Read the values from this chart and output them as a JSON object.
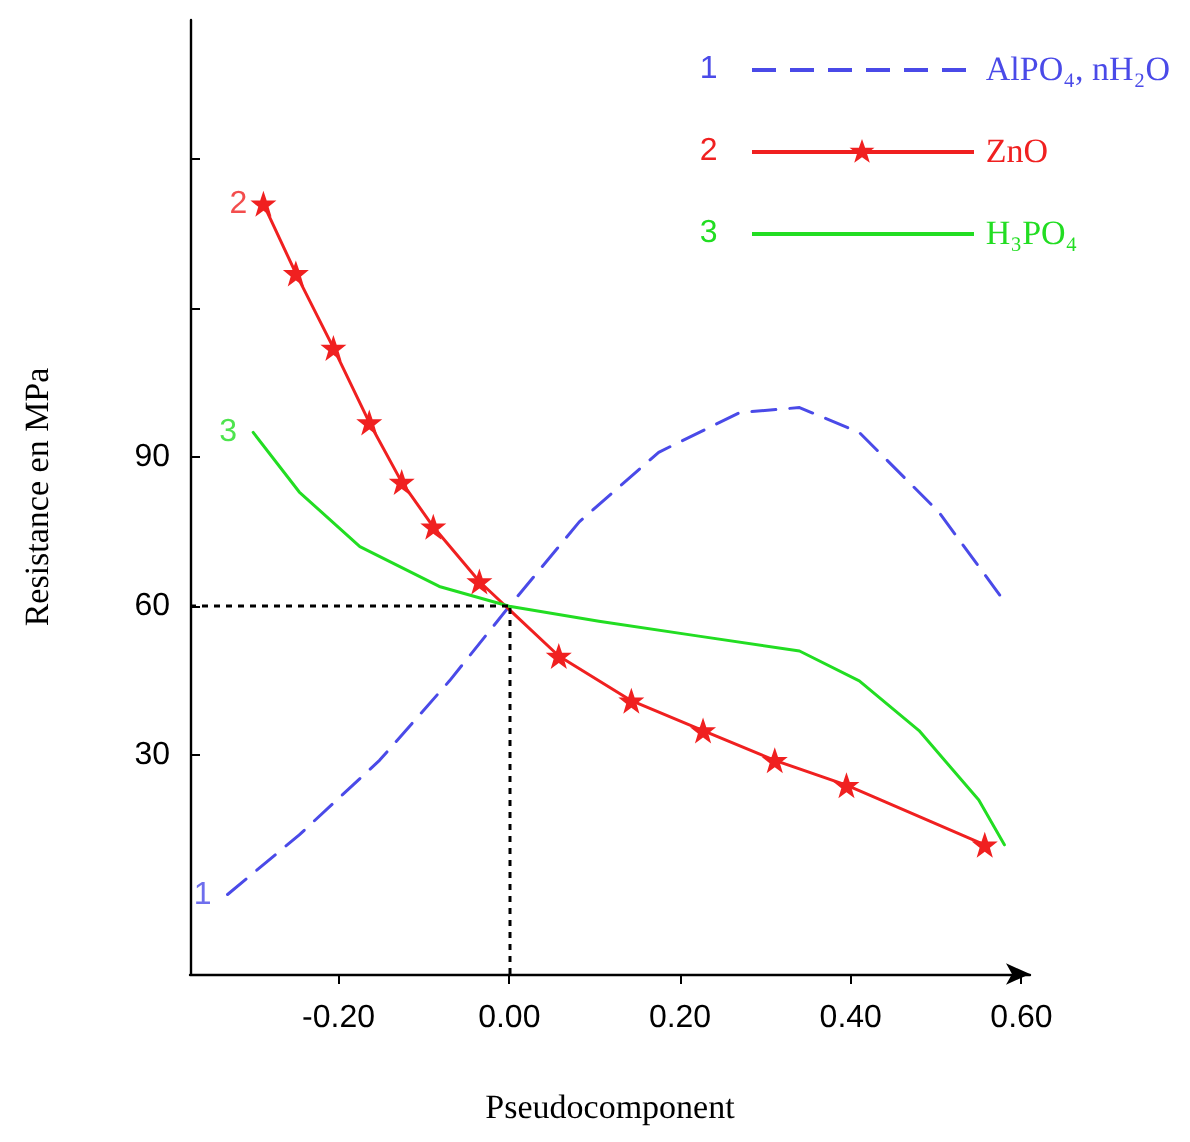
{
  "chart_data": {
    "type": "line",
    "xlabel": "Pseudocomponent",
    "ylabel": "Resistance en MPa",
    "xlim": [
      -0.374,
      0.61
    ],
    "ylim": [
      -14,
      178
    ],
    "xticks": [
      {
        "value": -0.2,
        "label": "-0.20"
      },
      {
        "value": 0,
        "label": "0.00"
      },
      {
        "value": 0.2,
        "label": "0.20"
      },
      {
        "value": 0.4,
        "label": "0.40"
      },
      {
        "value": 0.6,
        "label": "0.60"
      }
    ],
    "yticks": [
      30,
      60,
      90,
      {
        "value": 120,
        "label": null
      },
      {
        "value": 150,
        "label": null
      }
    ],
    "grid": false,
    "legend": "top right",
    "series": [
      {
        "name": "AlPO₄, nH₂O",
        "color": "#4a4ae8",
        "line_style": "dashed",
        "marker": "none",
        "x": [
          -0.33,
          -0.246,
          -0.152,
          -0.07,
          0,
          0.082,
          0.175,
          0.27,
          0.34,
          0.41,
          0.503,
          0.58
        ],
        "values": [
          2,
          14,
          29,
          45,
          60,
          77,
          91,
          99,
          100,
          95,
          79,
          61
        ]
      },
      {
        "name": "ZnO",
        "color": "#f02020",
        "line_style": "solid",
        "marker": "star",
        "x": [
          -0.288,
          -0.25,
          -0.206,
          -0.164,
          -0.126,
          -0.089,
          -0.035,
          0.058,
          0.143,
          0.227,
          0.311,
          0.395,
          0.557
        ],
        "values": [
          141,
          127,
          112,
          97,
          85,
          76,
          65,
          50,
          41,
          35,
          29,
          24,
          12
        ]
      },
      {
        "name": "H₃PO₄",
        "color": "#22dd22",
        "line_style": "solid",
        "marker": "none",
        "x": [
          -0.3,
          -0.246,
          -0.175,
          -0.082,
          0,
          0.105,
          0.222,
          0.34,
          0.41,
          0.48,
          0.55,
          0.58
        ],
        "values": [
          95,
          83,
          72,
          64,
          60,
          57,
          54,
          51,
          45,
          35,
          21,
          12
        ]
      }
    ],
    "annotations": [
      {
        "text": "1",
        "x": -0.33,
        "y": 2
      },
      {
        "text": "2",
        "x": -0.288,
        "y": 141
      },
      {
        "text": "3",
        "x": -0.3,
        "y": 95
      }
    ],
    "ref_lines": [
      {
        "axis": "y",
        "value": 60,
        "color": "#000000",
        "line_style": "dotted"
      },
      {
        "axis": "x",
        "value": 0,
        "color": "#000000",
        "line_style": "dotted"
      }
    ]
  }
}
